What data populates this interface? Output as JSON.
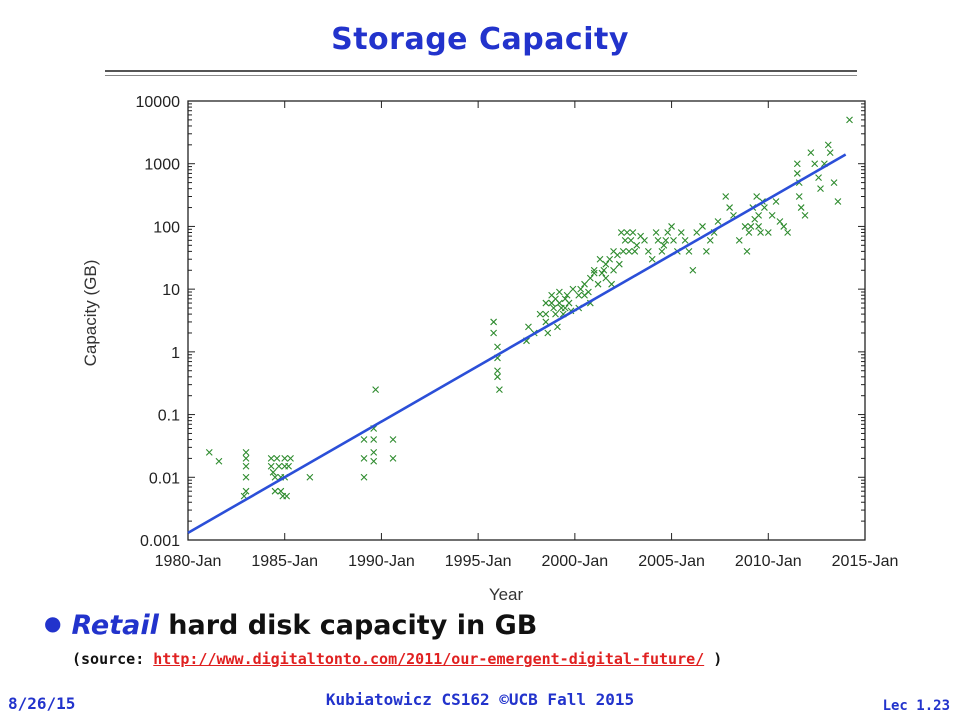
{
  "slide": {
    "title": "Storage Capacity",
    "bullet_prefix": "Retail",
    "bullet_rest": " hard disk capacity in GB",
    "source_prefix": "(source: ",
    "source_link": "http://www.digitaltonto.com/2011/our-emergent-digital-future/",
    "source_suffix": " )",
    "footer_date": "8/26/15",
    "footer_course": "Kubiatowicz CS162 ©UCB Fall 2015",
    "footer_lec": "Lec 1.23",
    "colors": {
      "title": "#2233cc",
      "link": "#e02020",
      "points": "#2e8b2e",
      "trend": "#2b4fd8"
    }
  },
  "chart_data": {
    "type": "scatter",
    "xlabel": "Year",
    "ylabel": "Capacity (GB)",
    "yscale": "log",
    "xlim": [
      1980.0,
      2015.0
    ],
    "ylim": [
      0.001,
      10000
    ],
    "grid": false,
    "x_ticks": [
      "1980-Jan",
      "1985-Jan",
      "1990-Jan",
      "1995-Jan",
      "2000-Jan",
      "2005-Jan",
      "2010-Jan",
      "2015-Jan"
    ],
    "y_ticks": [
      "0.001",
      "0.01",
      "0.1",
      "1",
      "10",
      "100",
      "1000",
      "10000"
    ],
    "series": [
      {
        "marker": "x",
        "points": [
          [
            1981.1,
            0.025
          ],
          [
            1981.6,
            0.018
          ],
          [
            1983.0,
            0.025
          ],
          [
            1983.0,
            0.02
          ],
          [
            1983.0,
            0.015
          ],
          [
            1983.0,
            0.01
          ],
          [
            1983.0,
            0.006
          ],
          [
            1982.9,
            0.005
          ],
          [
            1984.3,
            0.02
          ],
          [
            1984.3,
            0.015
          ],
          [
            1984.4,
            0.012
          ],
          [
            1984.5,
            0.01
          ],
          [
            1984.5,
            0.006
          ],
          [
            1984.6,
            0.02
          ],
          [
            1984.7,
            0.015
          ],
          [
            1984.8,
            0.01
          ],
          [
            1984.8,
            0.006
          ],
          [
            1984.9,
            0.005
          ],
          [
            1985.0,
            0.02
          ],
          [
            1985.0,
            0.015
          ],
          [
            1985.0,
            0.01
          ],
          [
            1985.1,
            0.005
          ],
          [
            1985.2,
            0.015
          ],
          [
            1985.3,
            0.02
          ],
          [
            1986.3,
            0.01
          ],
          [
            1989.1,
            0.04
          ],
          [
            1989.1,
            0.02
          ],
          [
            1989.1,
            0.01
          ],
          [
            1989.6,
            0.06
          ],
          [
            1989.6,
            0.04
          ],
          [
            1989.6,
            0.025
          ],
          [
            1989.6,
            0.018
          ],
          [
            1989.7,
            0.25
          ],
          [
            1990.6,
            0.04
          ],
          [
            1990.6,
            0.02
          ],
          [
            1995.8,
            3.0
          ],
          [
            1995.8,
            2.0
          ],
          [
            1996.0,
            1.2
          ],
          [
            1996.0,
            0.8
          ],
          [
            1996.0,
            0.5
          ],
          [
            1996.0,
            0.4
          ],
          [
            1996.1,
            0.25
          ],
          [
            1997.5,
            1.5
          ],
          [
            1997.6,
            2.5
          ],
          [
            1997.9,
            2.0
          ],
          [
            1998.2,
            4.0
          ],
          [
            1998.5,
            6.0
          ],
          [
            1998.5,
            4.0
          ],
          [
            1998.5,
            3.0
          ],
          [
            1998.6,
            2.0
          ],
          [
            1998.8,
            8.0
          ],
          [
            1998.8,
            6.0
          ],
          [
            1998.9,
            5.0
          ],
          [
            1999.0,
            7.0
          ],
          [
            1999.0,
            4.0
          ],
          [
            1999.1,
            2.5
          ],
          [
            1999.2,
            9.0
          ],
          [
            1999.2,
            6.0
          ],
          [
            1999.3,
            5.0
          ],
          [
            1999.4,
            4.0
          ],
          [
            1999.5,
            7.0
          ],
          [
            1999.5,
            5.0
          ],
          [
            1999.6,
            8.0
          ],
          [
            1999.7,
            6.0
          ],
          [
            1999.8,
            4.5
          ],
          [
            1999.9,
            10.0
          ],
          [
            2000.2,
            8.0
          ],
          [
            2000.2,
            5.0
          ],
          [
            2000.3,
            10.0
          ],
          [
            2000.5,
            12.0
          ],
          [
            2000.5,
            8.0
          ],
          [
            2000.7,
            9.0
          ],
          [
            2000.8,
            6.0
          ],
          [
            2000.8,
            15.0
          ],
          [
            2001.0,
            20.0
          ],
          [
            2001.0,
            18.0
          ],
          [
            2001.2,
            12.0
          ],
          [
            2001.3,
            30.0
          ],
          [
            2001.4,
            18.0
          ],
          [
            2001.5,
            20.0
          ],
          [
            2001.6,
            25.0
          ],
          [
            2001.6,
            15.0
          ],
          [
            2001.8,
            30.0
          ],
          [
            2001.9,
            12.0
          ],
          [
            2002.0,
            40.0
          ],
          [
            2002.0,
            20.0
          ],
          [
            2002.2,
            35.0
          ],
          [
            2002.3,
            25.0
          ],
          [
            2002.4,
            80.0
          ],
          [
            2002.5,
            40.0
          ],
          [
            2002.6,
            60.0
          ],
          [
            2002.7,
            80.0
          ],
          [
            2002.8,
            40.0
          ],
          [
            2002.9,
            60.0
          ],
          [
            2003.0,
            80.0
          ],
          [
            2003.1,
            40.0
          ],
          [
            2003.2,
            50.0
          ],
          [
            2003.4,
            70.0
          ],
          [
            2003.6,
            60.0
          ],
          [
            2003.8,
            40.0
          ],
          [
            2004.0,
            30.0
          ],
          [
            2004.2,
            80.0
          ],
          [
            2004.3,
            60.0
          ],
          [
            2004.5,
            40.0
          ],
          [
            2004.6,
            50.0
          ],
          [
            2004.7,
            60.0
          ],
          [
            2004.8,
            80.0
          ],
          [
            2005.0,
            100.0
          ],
          [
            2005.1,
            60.0
          ],
          [
            2005.3,
            40.0
          ],
          [
            2005.5,
            80.0
          ],
          [
            2005.7,
            60.0
          ],
          [
            2005.9,
            40.0
          ],
          [
            2006.1,
            20.0
          ],
          [
            2006.3,
            80.0
          ],
          [
            2006.6,
            100.0
          ],
          [
            2006.8,
            40.0
          ],
          [
            2007.0,
            60.0
          ],
          [
            2007.2,
            80.0
          ],
          [
            2007.4,
            120.0
          ],
          [
            2007.8,
            300.0
          ],
          [
            2008.0,
            200.0
          ],
          [
            2008.2,
            150.0
          ],
          [
            2008.5,
            60.0
          ],
          [
            2008.8,
            100.0
          ],
          [
            2008.9,
            40.0
          ],
          [
            2009.0,
            80.0
          ],
          [
            2009.1,
            100.0
          ],
          [
            2009.2,
            200.0
          ],
          [
            2009.3,
            130.0
          ],
          [
            2009.4,
            300.0
          ],
          [
            2009.5,
            150.0
          ],
          [
            2009.5,
            100.0
          ],
          [
            2009.6,
            80.0
          ],
          [
            2009.7,
            250.0
          ],
          [
            2009.8,
            200.0
          ],
          [
            2010.0,
            80.0
          ],
          [
            2010.2,
            150.0
          ],
          [
            2010.4,
            250.0
          ],
          [
            2010.6,
            120.0
          ],
          [
            2010.8,
            100.0
          ],
          [
            2011.0,
            80.0
          ],
          [
            2011.5,
            1000.0
          ],
          [
            2011.5,
            700.0
          ],
          [
            2011.6,
            500.0
          ],
          [
            2011.6,
            300.0
          ],
          [
            2011.7,
            200.0
          ],
          [
            2011.9,
            150.0
          ],
          [
            2012.2,
            1500.0
          ],
          [
            2012.4,
            1000.0
          ],
          [
            2012.6,
            600.0
          ],
          [
            2012.7,
            400.0
          ],
          [
            2012.9,
            1000.0
          ],
          [
            2013.1,
            2000.0
          ],
          [
            2013.2,
            1500.0
          ],
          [
            2013.4,
            500.0
          ],
          [
            2013.6,
            250.0
          ],
          [
            2014.2,
            5000.0
          ]
        ]
      }
    ],
    "trendline": {
      "x": [
        1980.0,
        2014.0
      ],
      "y": [
        0.0013,
        1400
      ]
    }
  }
}
